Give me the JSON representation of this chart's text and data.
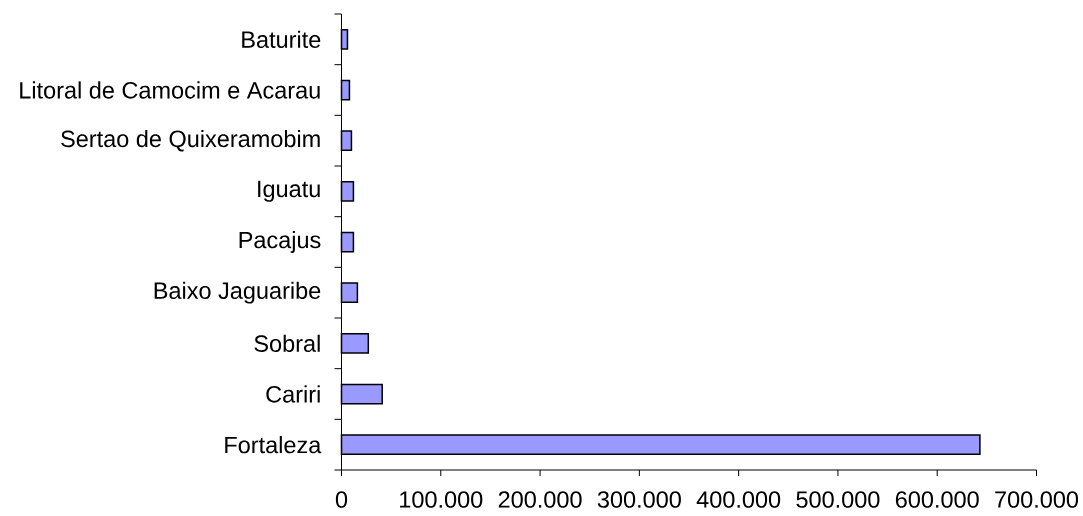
{
  "chart_data": {
    "type": "bar",
    "orientation": "horizontal",
    "categories": [
      "Baturite",
      "Litoral de Camocim e Acarau",
      "Sertao de Quixeramobim",
      "Iguatu",
      "Pacajus",
      "Baixo Jaguaribe",
      "Sobral",
      "Cariri",
      "Fortaleza"
    ],
    "values": [
      6000,
      8000,
      10000,
      12000,
      12000,
      16000,
      27000,
      41000,
      643000
    ],
    "color": "#9999ff",
    "xlim": [
      0,
      700000
    ],
    "xticks": [
      0,
      {
        "value": 100000,
        "label": "100.000"
      },
      {
        "value": 200000,
        "label": "200.000"
      },
      {
        "value": 300000,
        "label": "300.000"
      },
      {
        "value": 400000,
        "label": "400.000"
      },
      {
        "value": 500000,
        "label": "500.000"
      },
      {
        "value": 600000,
        "label": "600.000"
      },
      {
        "value": 700000,
        "label": "700.000"
      }
    ]
  }
}
